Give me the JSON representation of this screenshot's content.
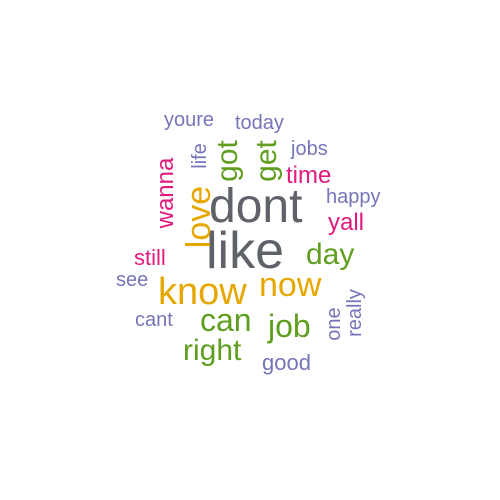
{
  "palette": {
    "gray": "#5f6268",
    "gold": "#e6a800",
    "green": "#5f9e1f",
    "magenta": "#e3197c",
    "purple": "#7575b8"
  },
  "words": {
    "like": "like",
    "dont": "dont",
    "know": "know",
    "now": "now",
    "love": "love",
    "can": "can",
    "job": "job",
    "right": "right",
    "got": "got",
    "get": "get",
    "day": "day",
    "wanna": "wanna",
    "time": "time",
    "yall": "yall",
    "still": "still",
    "youre": "youre",
    "today": "today",
    "jobs": "jobs",
    "happy": "happy",
    "life": "life",
    "see": "see",
    "cant": "cant",
    "one": "one",
    "really": "really",
    "good": "good"
  }
}
